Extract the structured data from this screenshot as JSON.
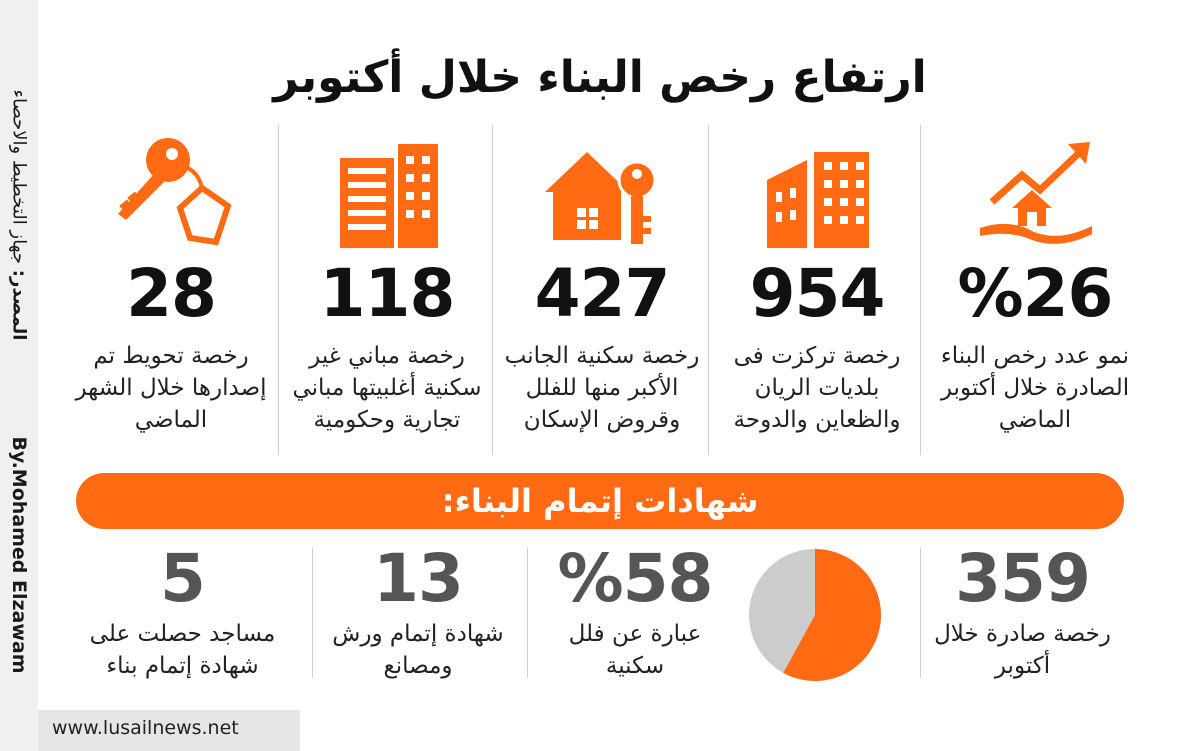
{
  "title": "ارتفاع رخص البناء خلال أكتوبر",
  "sidebar": {
    "source_label": "المصدر:",
    "source_text": "جهاز التخطيط والاحصاء",
    "byline": "By.Mohamed Elzawam"
  },
  "website": "www.lusailnews.net",
  "stats": [
    {
      "value": "%26",
      "description": "نمو عدد رخص البناء الصادرة خلال أكتوبر الماضي",
      "icon": "house-growth-icon"
    },
    {
      "value": "954",
      "description": "رخصة تركزت فى بلديات الريان والظعاين والدوحة",
      "icon": "buildings-icon"
    },
    {
      "value": "427",
      "description": "رخصة سكنية الجانب الأكبر منها للفلل وقروض الإسكان",
      "icon": "house-key-icon"
    },
    {
      "value": "118",
      "description": "رخصة مباني غير سكنية أغلبيتها مباني تجارية وحكومية",
      "icon": "office-building-icon"
    },
    {
      "value": "28",
      "description": "رخصة تحويط تم إصدارها خلال الشهر الماضي",
      "icon": "key-tag-icon"
    }
  ],
  "banner": "شهادات إتمام البناء:",
  "certificates": [
    {
      "value": "359",
      "description": "رخصة صادرة خلال أكتوبر"
    },
    {
      "value": "%58",
      "description": "عبارة عن فلل سكنية"
    },
    {
      "value": "13",
      "description": "شهادة إتمام ورش ومصانع"
    },
    {
      "value": "5",
      "description": "مساجد حصلت على شهادة إتمام بناء"
    }
  ],
  "pie": {
    "share": 0.58,
    "colors": {
      "main": "#ff6a13",
      "rest": "#cccccc"
    }
  },
  "colors": {
    "accent": "#ff6a13",
    "text": "#111111",
    "gray_number": "#555555"
  }
}
